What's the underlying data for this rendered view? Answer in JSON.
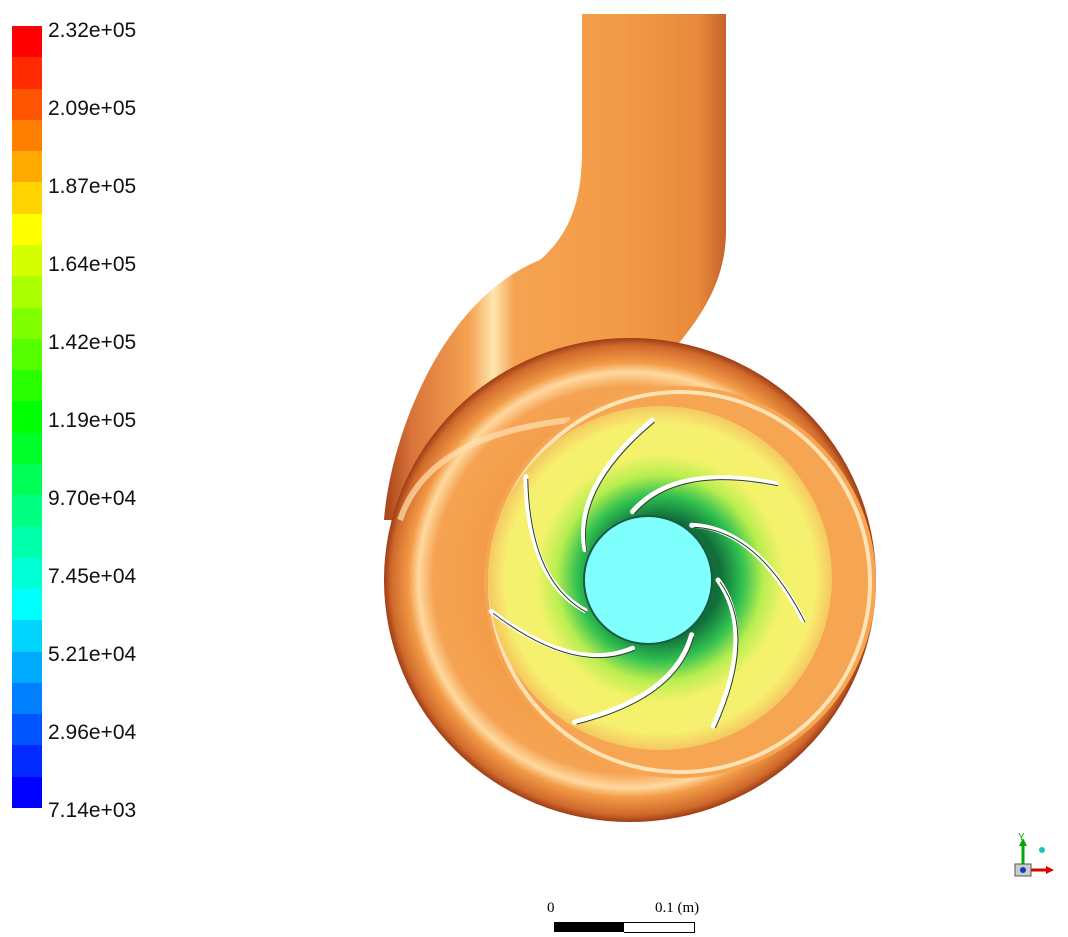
{
  "legend": {
    "labels": [
      "2.32e+05",
      "2.09e+05",
      "1.87e+05",
      "1.64e+05",
      "1.42e+05",
      "1.19e+05",
      "9.70e+04",
      "7.45e+04",
      "5.21e+04",
      "2.96e+04",
      "7.14e+03"
    ],
    "colors": [
      "#ff0000",
      "#ff2a00",
      "#ff5500",
      "#ff8000",
      "#ffaa00",
      "#ffd400",
      "#ffff00",
      "#d4ff00",
      "#aaff00",
      "#80ff00",
      "#55ff00",
      "#2aff00",
      "#00ff00",
      "#00ff2a",
      "#00ff55",
      "#00ff80",
      "#00ffaa",
      "#00ffd4",
      "#00ffff",
      "#00d4ff",
      "#00aaff",
      "#0080ff",
      "#0055ff",
      "#002aff",
      "#0000ff"
    ]
  },
  "scene": {
    "volute_color": "#f29a46",
    "volute_edge": "#b34a1c",
    "impeller_field": "#f3f26a",
    "hub_color": "#80ffff",
    "blade_count": 7,
    "blade_color": "#ffffff"
  },
  "scale_bar": {
    "zero": "0",
    "max": "0.1 (m)"
  },
  "axis_triad": {
    "y_label": "Y"
  }
}
